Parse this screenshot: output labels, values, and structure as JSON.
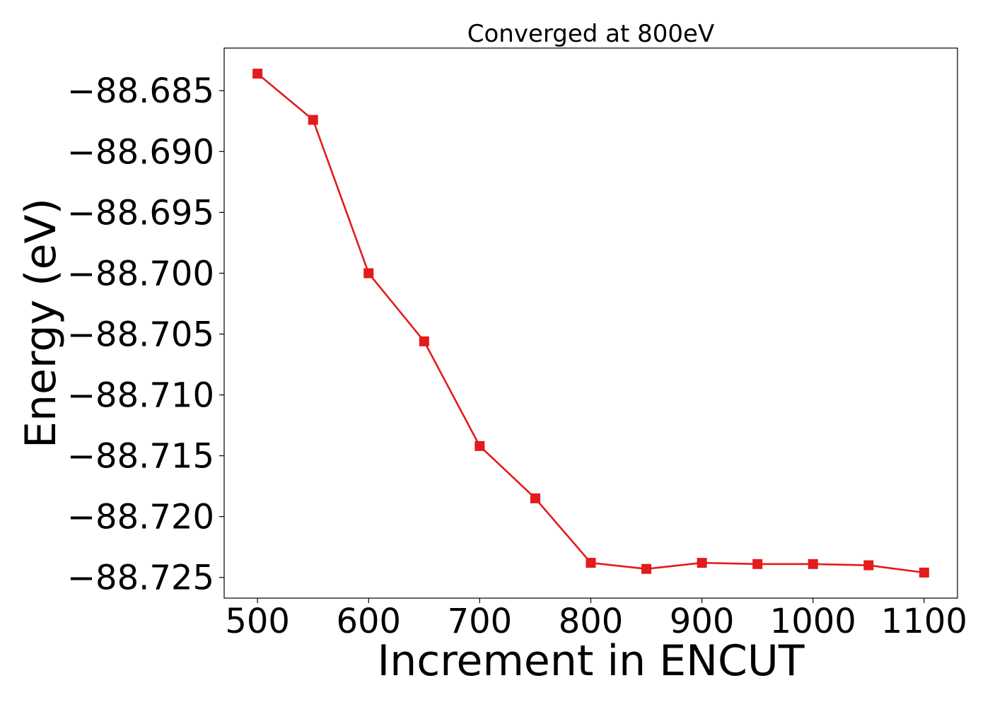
{
  "chart_data": {
    "type": "line",
    "title": "Converged at 800eV",
    "xlabel": "Increment in ENCUT",
    "ylabel": "Energy (eV)",
    "xlim": [
      470,
      1130
    ],
    "ylim": [
      -88.7267,
      -88.6815
    ],
    "xticks": [
      500,
      600,
      700,
      800,
      900,
      1000,
      1100
    ],
    "xtick_labels": [
      "500",
      "600",
      "700",
      "800",
      "900",
      "1000",
      "1100"
    ],
    "yticks": [
      -88.685,
      -88.69,
      -88.695,
      -88.7,
      -88.705,
      -88.71,
      -88.715,
      -88.72,
      -88.725
    ],
    "ytick_labels": [
      "−88.685",
      "−88.690",
      "−88.695",
      "−88.700",
      "−88.705",
      "−88.710",
      "−88.715",
      "−88.720",
      "−88.725"
    ],
    "grid": false,
    "series": [
      {
        "color": "#e41a1c",
        "marker": "square",
        "x": [
          500,
          550,
          600,
          650,
          700,
          750,
          800,
          850,
          900,
          950,
          1000,
          1050,
          1100
        ],
        "y": [
          -88.6836,
          -88.6874,
          -88.7,
          -88.7056,
          -88.7142,
          -88.7185,
          -88.7238,
          -88.7243,
          -88.7238,
          -88.7239,
          -88.7239,
          -88.724,
          -88.7246
        ]
      }
    ]
  }
}
